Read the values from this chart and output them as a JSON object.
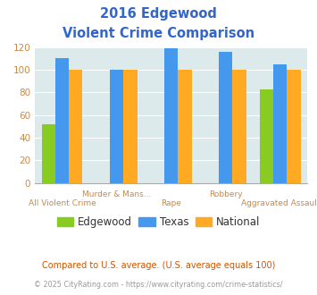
{
  "title_line1": "2016 Edgewood",
  "title_line2": "Violent Crime Comparison",
  "groups": [
    {
      "label": "Edgewood",
      "color": "#88cc22",
      "values": [
        52,
        0,
        0,
        0,
        83
      ]
    },
    {
      "label": "Texas",
      "color": "#4499ee",
      "values": [
        110,
        100,
        119,
        116,
        105
      ]
    },
    {
      "label": "National",
      "color": "#ffaa22",
      "values": [
        100,
        100,
        100,
        100,
        100
      ]
    }
  ],
  "top_xlabels": [
    [
      1,
      "Murder & Mans..."
    ],
    [
      3,
      "Robbery"
    ]
  ],
  "bot_xlabels": [
    [
      0,
      "All Violent Crime"
    ],
    [
      2,
      "Rape"
    ],
    [
      4,
      "Aggravated Assault"
    ]
  ],
  "ylim": [
    0,
    120
  ],
  "yticks": [
    0,
    20,
    40,
    60,
    80,
    100,
    120
  ],
  "bar_width": 0.25,
  "group_positions": [
    0,
    1,
    2,
    3,
    4
  ],
  "fig_bg": "#ffffff",
  "plot_bg": "#ddeaec",
  "title_color": "#3366cc",
  "tick_color": "#cc8844",
  "label_color": "#cc8844",
  "legend_text_color": "#333333",
  "footnote1": "Compared to U.S. average. (U.S. average equals 100)",
  "footnote2": "© 2025 CityRating.com - https://www.cityrating.com/crime-statistics/",
  "footnote1_color": "#cc5500",
  "footnote2_color": "#999999"
}
